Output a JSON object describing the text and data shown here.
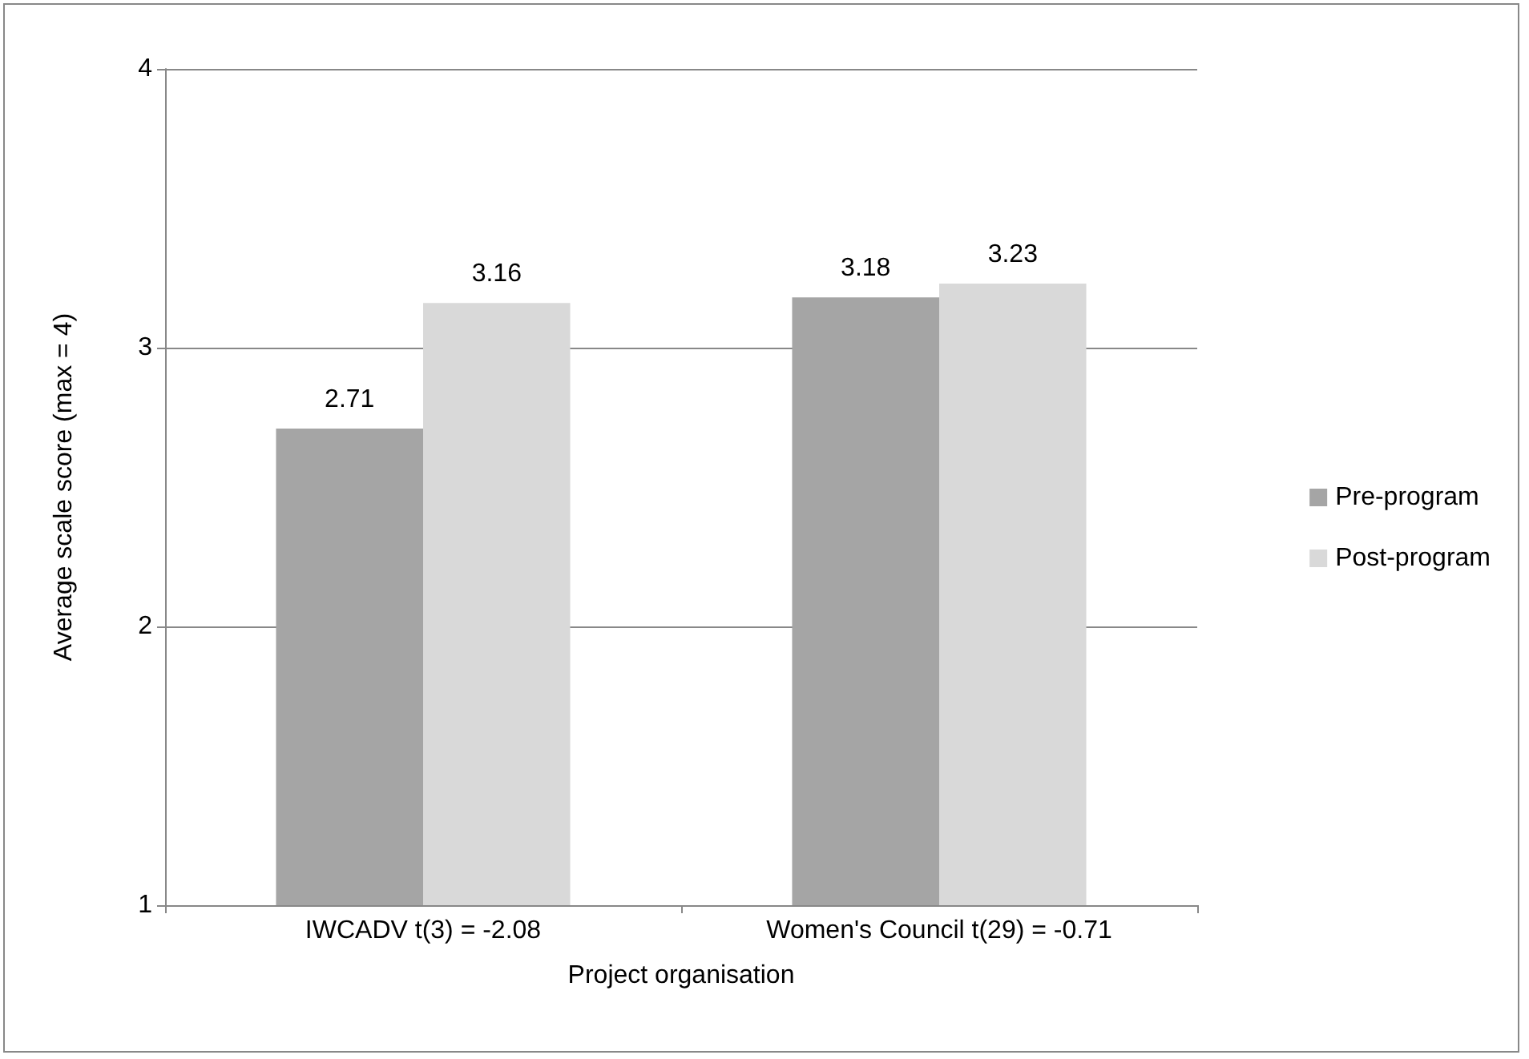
{
  "chart_data": {
    "type": "bar",
    "xlabel": "Project organisation",
    "ylabel": "Average scale score (max = 4)",
    "categories": [
      "IWCADV t(3) = -2.08",
      "Women's Council t(29) = -0.71"
    ],
    "series": [
      {
        "name": "Pre-program",
        "color": "#a5a5a5",
        "values": [
          2.71,
          3.18
        ]
      },
      {
        "name": "Post-program",
        "color": "#d9d9d9",
        "values": [
          3.16,
          3.23
        ]
      }
    ],
    "ylim": [
      1,
      4
    ],
    "yticks": [
      1,
      2,
      3,
      4
    ],
    "grid": "y",
    "legend": "right",
    "data_labels": true
  }
}
